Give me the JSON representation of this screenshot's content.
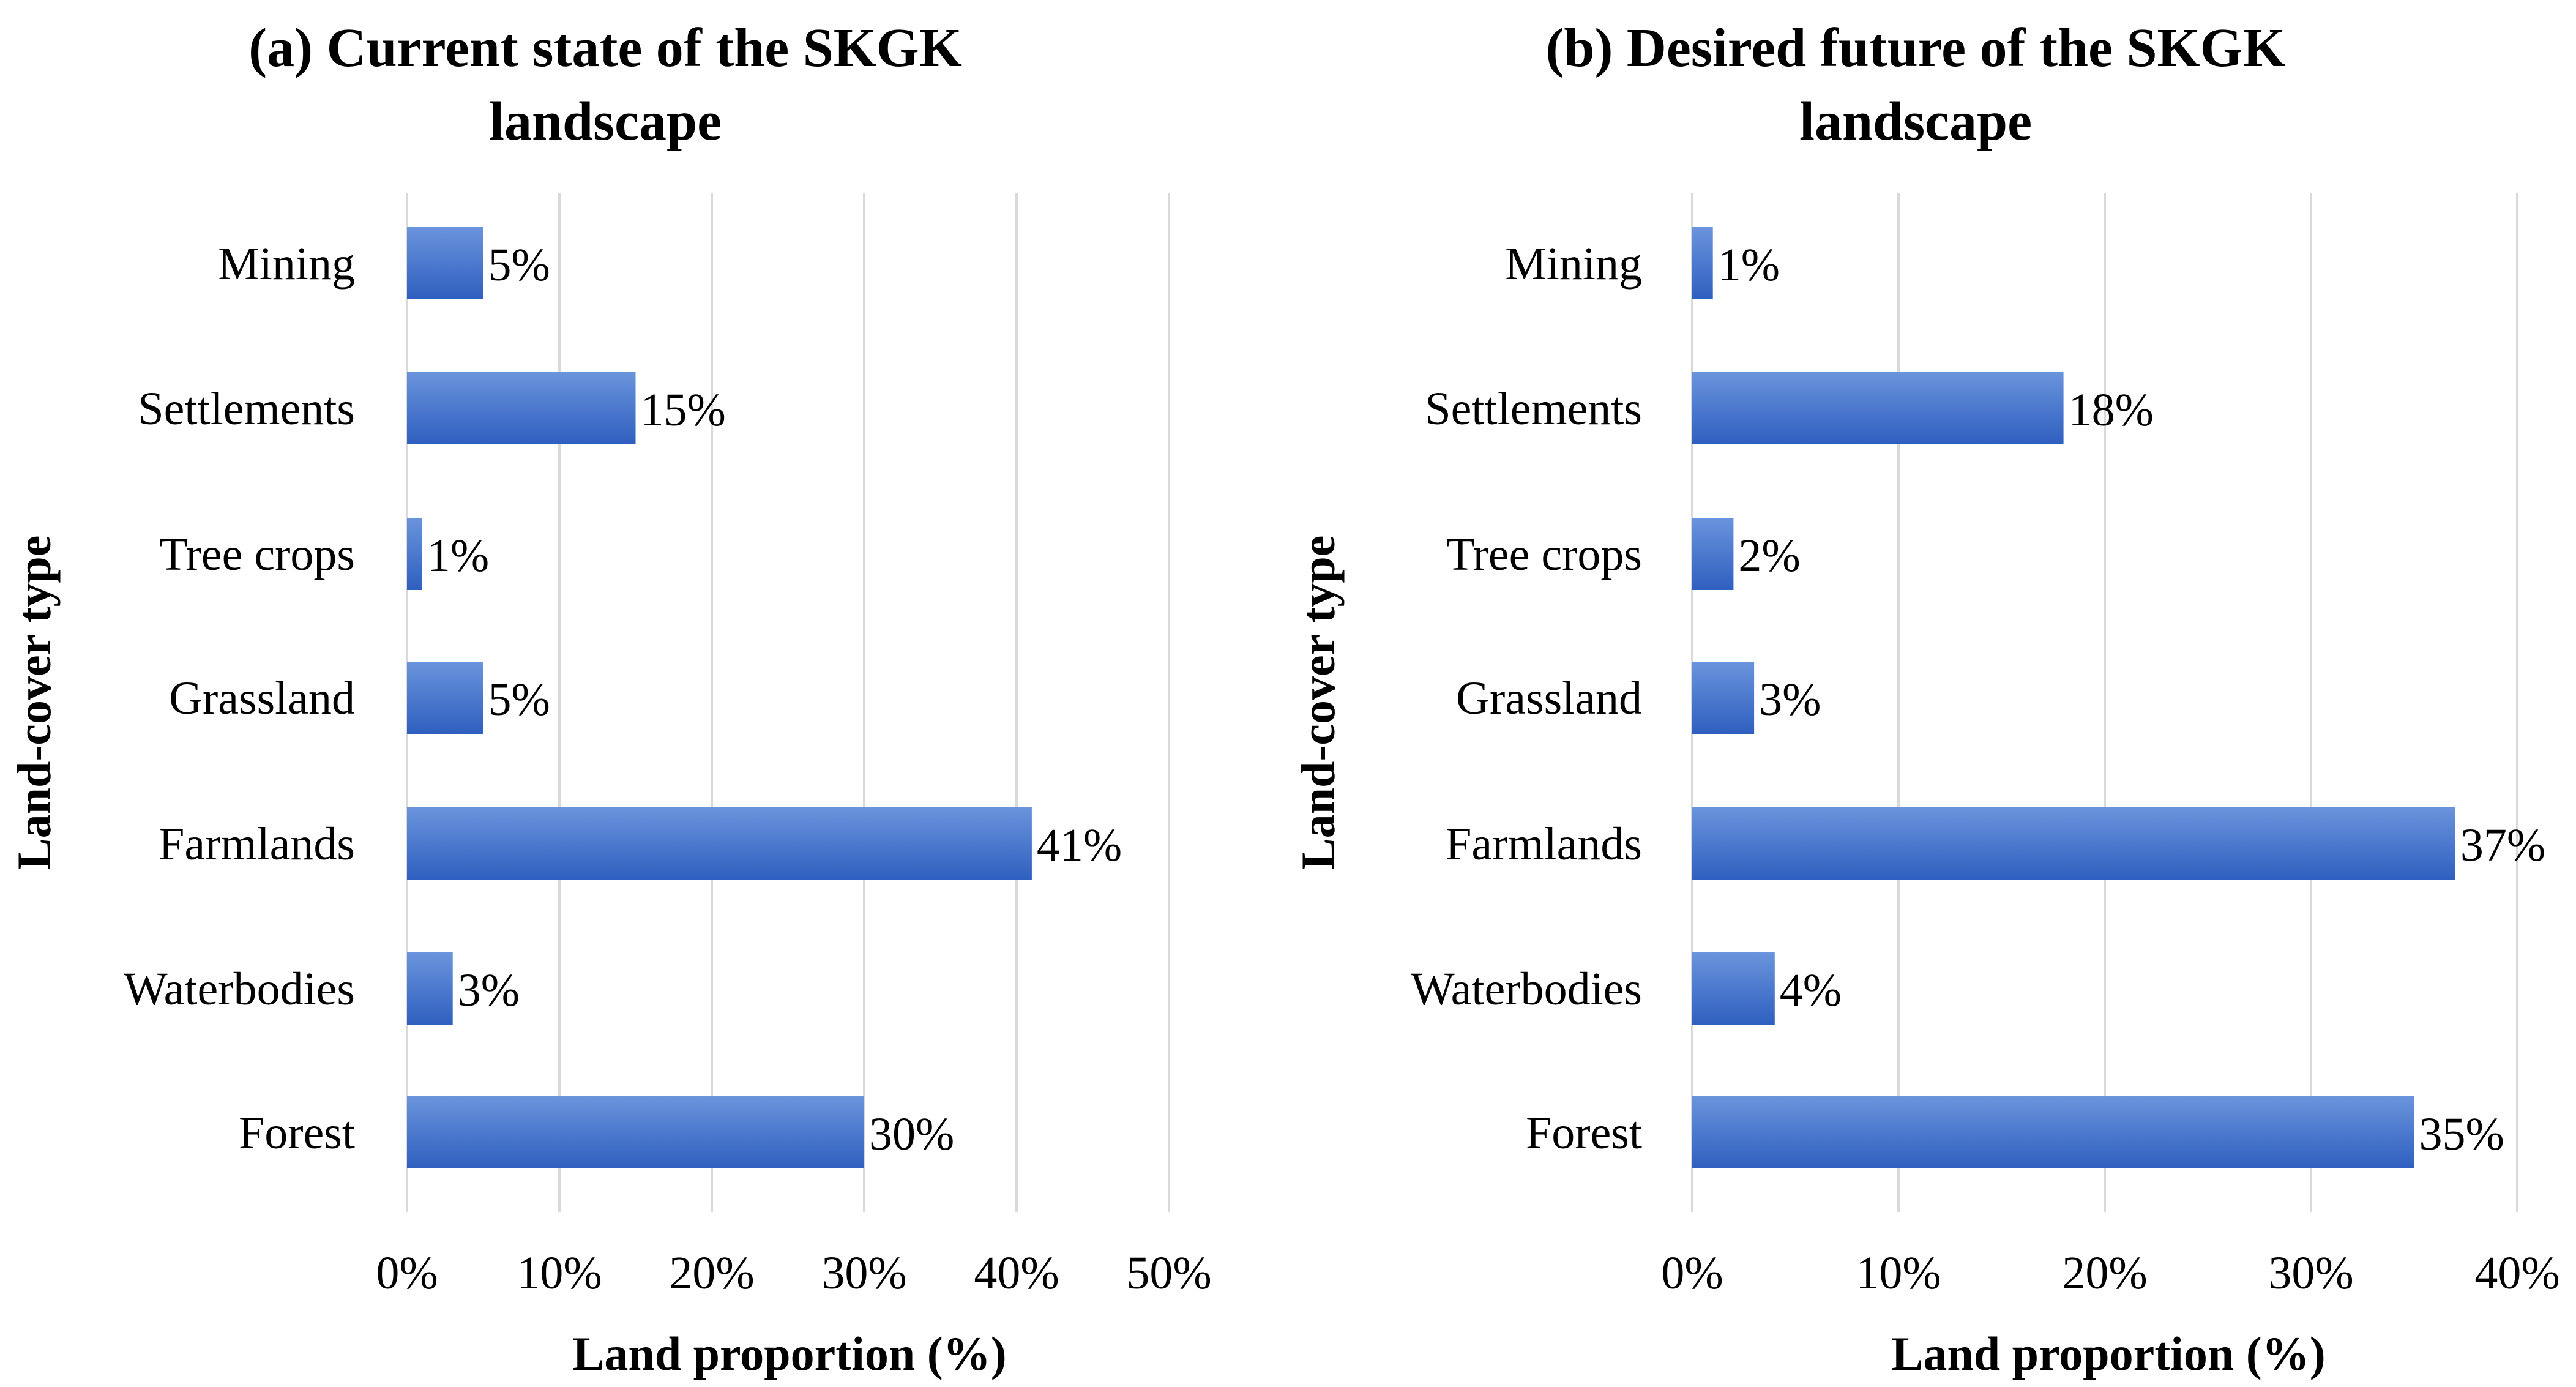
{
  "figure": {
    "name": "land-cover-comparison"
  },
  "chart_data": [
    {
      "type": "bar",
      "orientation": "horizontal",
      "title_lines": [
        "(a) Current state of the SKGK",
        "landscape"
      ],
      "xlabel": "Land proportion (%)",
      "ylabel": "Land-cover type",
      "categories": [
        "Mining",
        "Settlements",
        "Tree crops",
        "Grassland",
        "Farmlands",
        "Waterbodies",
        "Forest"
      ],
      "values": [
        5,
        15,
        1,
        5,
        41,
        3,
        30
      ],
      "data_labels": [
        "5%",
        "15%",
        "1%",
        "5%",
        "41%",
        "3%",
        "30%"
      ],
      "xlim": [
        0,
        50
      ],
      "xticks": [
        0,
        10,
        20,
        30,
        40,
        50
      ],
      "xtick_labels": [
        "0%",
        "10%",
        "20%",
        "30%",
        "40%",
        "50%"
      ],
      "grid": true,
      "bar_color": "#4472c4"
    },
    {
      "type": "bar",
      "orientation": "horizontal",
      "title_lines": [
        "(b) Desired future of the SKGK",
        "landscape"
      ],
      "xlabel": "Land proportion (%)",
      "ylabel": "Land-cover type",
      "categories": [
        "Mining",
        "Settlements",
        "Tree crops",
        "Grassland",
        "Farmlands",
        "Waterbodies",
        "Forest"
      ],
      "values": [
        1,
        18,
        2,
        3,
        37,
        4,
        35
      ],
      "data_labels": [
        "1%",
        "18%",
        "2%",
        "3%",
        "37%",
        "4%",
        "35%"
      ],
      "xlim": [
        0,
        40
      ],
      "xticks": [
        0,
        10,
        20,
        30,
        40
      ],
      "xtick_labels": [
        "0%",
        "10%",
        "20%",
        "30%",
        "40%"
      ],
      "grid": true,
      "bar_color": "#4472c4"
    }
  ]
}
